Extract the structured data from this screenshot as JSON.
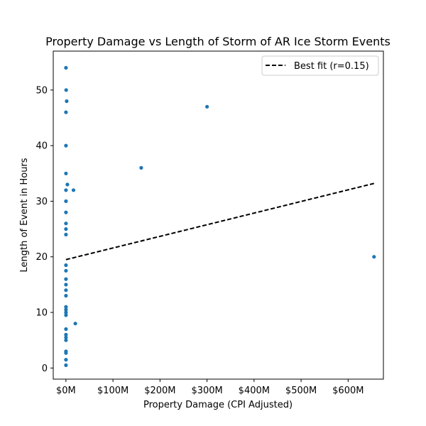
{
  "chart_data": {
    "type": "scatter",
    "title": "Property Damage vs Length of Storm of AR Ice Storm Events",
    "xlabel": "Property Damage (CPI Adjusted)",
    "ylabel": "Length of Event in Hours",
    "xlim": [
      -27,
      675
    ],
    "ylim": [
      -2,
      57
    ],
    "x_ticks": [
      {
        "value": 0,
        "label": "$0M"
      },
      {
        "value": 100,
        "label": "$100M"
      },
      {
        "value": 200,
        "label": "$200M"
      },
      {
        "value": 300,
        "label": "$300M"
      },
      {
        "value": 400,
        "label": "$400M"
      },
      {
        "value": 500,
        "label": "$500M"
      },
      {
        "value": 600,
        "label": "$600M"
      }
    ],
    "y_ticks": [
      {
        "value": 0,
        "label": "0"
      },
      {
        "value": 10,
        "label": "10"
      },
      {
        "value": 20,
        "label": "20"
      },
      {
        "value": 30,
        "label": "30"
      },
      {
        "value": 40,
        "label": "40"
      },
      {
        "value": 50,
        "label": "50"
      }
    ],
    "grid": false,
    "legend": {
      "position": "top-right",
      "entries": [
        {
          "label": "Best fit (r=0.15)",
          "style": "dashed-line"
        }
      ]
    },
    "colors": {
      "points": "#1f77b4",
      "fit_line": "#000000"
    },
    "series": [
      {
        "name": "",
        "points": [
          {
            "x": 0,
            "y": 54
          },
          {
            "x": 0.5,
            "y": 50
          },
          {
            "x": 1.5,
            "y": 48
          },
          {
            "x": 0,
            "y": 46
          },
          {
            "x": 0,
            "y": 40
          },
          {
            "x": 0,
            "y": 35
          },
          {
            "x": 3,
            "y": 33
          },
          {
            "x": 0,
            "y": 32
          },
          {
            "x": 16,
            "y": 32
          },
          {
            "x": 0,
            "y": 30
          },
          {
            "x": 0,
            "y": 28
          },
          {
            "x": 0,
            "y": 26
          },
          {
            "x": 0,
            "y": 25
          },
          {
            "x": 0,
            "y": 24
          },
          {
            "x": 0,
            "y": 18.5
          },
          {
            "x": 0,
            "y": 17.5
          },
          {
            "x": 0,
            "y": 16
          },
          {
            "x": 0,
            "y": 15
          },
          {
            "x": 0,
            "y": 14
          },
          {
            "x": 0,
            "y": 13
          },
          {
            "x": 0,
            "y": 11
          },
          {
            "x": 0,
            "y": 10.5
          },
          {
            "x": 0,
            "y": 10
          },
          {
            "x": 0,
            "y": 9.5
          },
          {
            "x": 20,
            "y": 8
          },
          {
            "x": 0,
            "y": 7
          },
          {
            "x": 0,
            "y": 6
          },
          {
            "x": 0,
            "y": 5.5
          },
          {
            "x": 0,
            "y": 5
          },
          {
            "x": 0,
            "y": 3
          },
          {
            "x": 0,
            "y": 2.7
          },
          {
            "x": 0,
            "y": 1.5
          },
          {
            "x": 0,
            "y": 0.5
          },
          {
            "x": 160,
            "y": 36
          },
          {
            "x": 300,
            "y": 47
          },
          {
            "x": 655,
            "y": 20
          }
        ]
      }
    ],
    "fit_line": {
      "x": [
        0,
        655
      ],
      "y": [
        19.5,
        33.2
      ]
    }
  }
}
